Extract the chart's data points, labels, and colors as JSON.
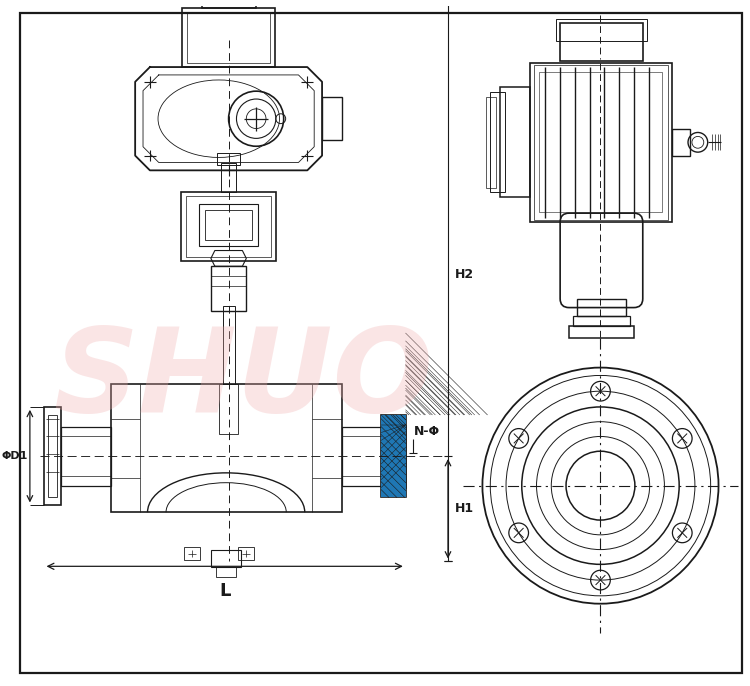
{
  "bg_color": "#ffffff",
  "line_color": "#1a1a1a",
  "watermark_color": "#f0b0b0",
  "labels": {
    "H2": "H2",
    "H1": "H1",
    "L": "L",
    "D1": "ΦD1",
    "NP": "N-Φ"
  }
}
